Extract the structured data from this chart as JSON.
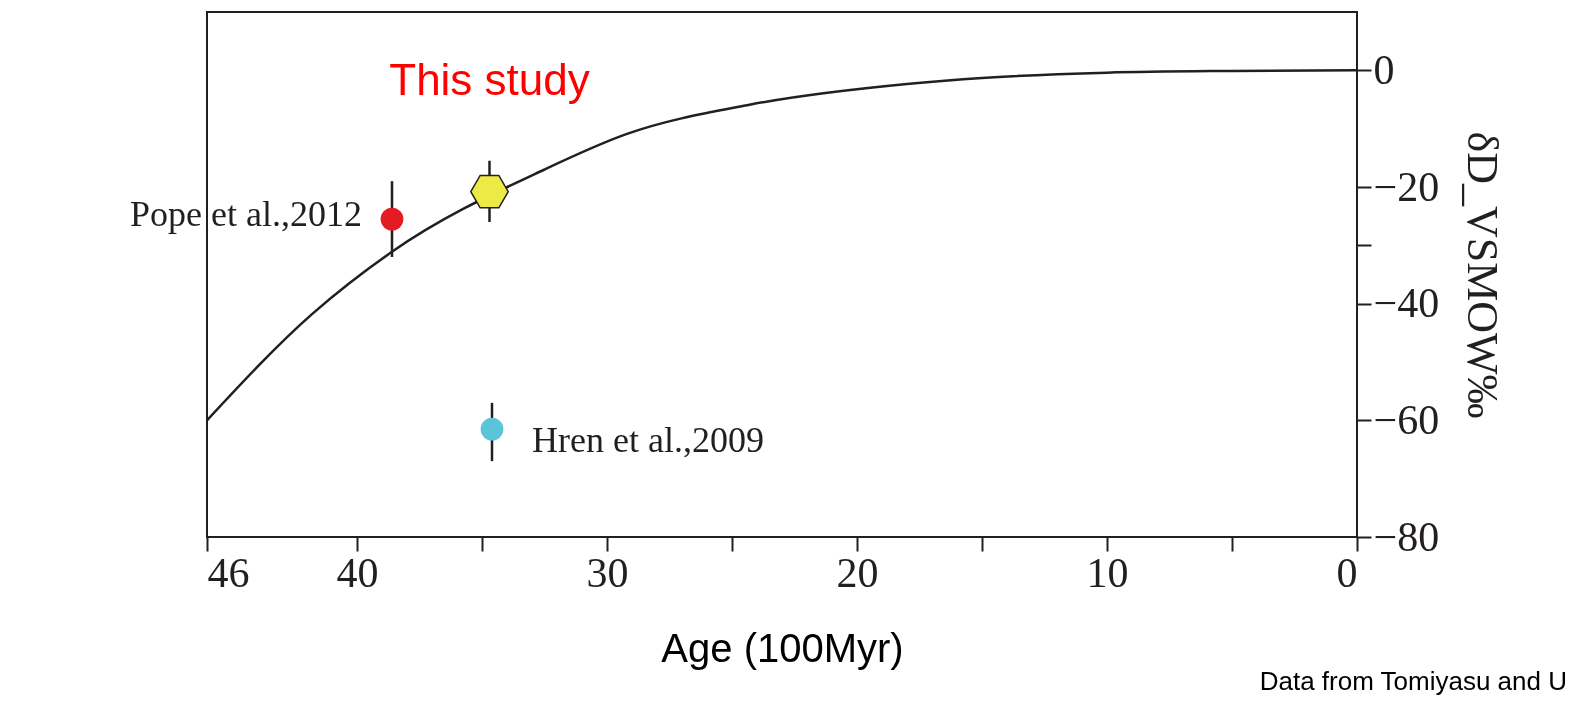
{
  "chart_data": {
    "type": "scatter",
    "xlabel": "Age (100Myr)",
    "ylabel": "δD_VSMOW‰",
    "xlim": [
      46,
      0
    ],
    "xticks": [
      46,
      40,
      {
        "value": 35,
        "label": null
      },
      30,
      {
        "value": 25,
        "label": null
      },
      20,
      {
        "value": 15,
        "label": null
      },
      10,
      {
        "value": 5,
        "label": null
      },
      0
    ],
    "ylim": [
      -80,
      10
    ],
    "yticks": [
      0,
      -20,
      {
        "value": -30,
        "label": null
      },
      -40,
      -60,
      -80
    ],
    "grid": false,
    "series": [
      {
        "type": "line",
        "color": "#231f20",
        "marker": "none",
        "line_style": "solid",
        "x": [
          46,
          41.8,
          38.6,
          32.5,
          29.2,
          24.3,
          17.9,
          15,
          10,
          5,
          0
        ],
        "values": [
          -60,
          -41.8,
          -31.1,
          -17,
          -10.9,
          -5.9,
          -2.3,
          -1.3,
          -0.4,
          -0.1,
          0
        ]
      },
      {
        "name": "Pope et al.,2012",
        "color": "#e31b23",
        "marker": "circle",
        "x": [
          38.6
        ],
        "values": [
          -25.5
        ],
        "errors": [
          [
            -32,
            -19
          ]
        ]
      },
      {
        "color": "#eeea45",
        "x": [
          34.7
        ],
        "values": [
          -20.8
        ],
        "errors": [
          [
            -26,
            -15.5
          ]
        ]
      },
      {
        "name": "Hren et al.,2009",
        "color": "#5bc4d8",
        "marker": "circle",
        "x": [
          34.6
        ],
        "values": [
          -61.5
        ],
        "errors": [
          [
            -67,
            -57
          ]
        ]
      }
    ],
    "annotations": [
      {
        "text": "This study",
        "x": 34.7,
        "y": -20.8
      },
      "Data from Tomiyasu and U"
    ]
  }
}
